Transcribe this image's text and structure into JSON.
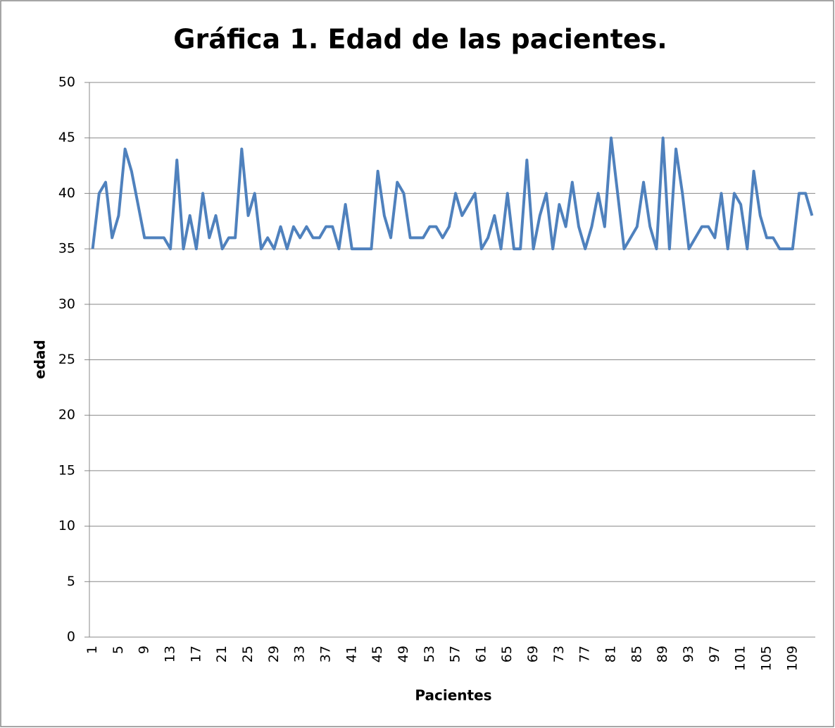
{
  "chart_data": {
    "type": "line",
    "title": "Gráfica 1. Edad de las pacientes.",
    "x_label": "Pacientes",
    "y_label": "edad",
    "categories": [
      1,
      null,
      null,
      null,
      5,
      null,
      null,
      null,
      9,
      null,
      null,
      null,
      13,
      null,
      null,
      null,
      17,
      null,
      null,
      null,
      21,
      null,
      null,
      null,
      25,
      null,
      null,
      null,
      29,
      null,
      null,
      null,
      33,
      null,
      null,
      null,
      37,
      null,
      null,
      null,
      41,
      null,
      null,
      null,
      45,
      null,
      null,
      null,
      49,
      null,
      null,
      null,
      53,
      null,
      null,
      null,
      57,
      null,
      null,
      null,
      61,
      null,
      null,
      null,
      65,
      null,
      null,
      null,
      69,
      null,
      null,
      null,
      73,
      null,
      null,
      null,
      77,
      null,
      null,
      null,
      81,
      null,
      null,
      null,
      85,
      null,
      null,
      null,
      89,
      null,
      null,
      null,
      93,
      null,
      null,
      null,
      97,
      null,
      null,
      null,
      101,
      null,
      null,
      null,
      105,
      null,
      null,
      null,
      109,
      null,
      null,
      null
    ],
    "series": [
      {
        "name": "edad",
        "color": "#4f81bd",
        "values": [
          35,
          40,
          41,
          36,
          38,
          44,
          42,
          39,
          36,
          36,
          36,
          36,
          35,
          43,
          35,
          38,
          35,
          40,
          36,
          38,
          35,
          36,
          36,
          44,
          38,
          40,
          35,
          36,
          35,
          37,
          35,
          37,
          36,
          37,
          36,
          36,
          37,
          37,
          35,
          39,
          35,
          35,
          35,
          35,
          42,
          38,
          36,
          41,
          40,
          36,
          36,
          36,
          37,
          37,
          36,
          37,
          40,
          38,
          39,
          40,
          35,
          36,
          38,
          35,
          40,
          35,
          35,
          43,
          35,
          38,
          40,
          35,
          39,
          37,
          41,
          37,
          35,
          37,
          40,
          37,
          45,
          40,
          35,
          36,
          37,
          41,
          37,
          35,
          45,
          35,
          44,
          40,
          35,
          36,
          37,
          37,
          36,
          40,
          35,
          40,
          39,
          35,
          42,
          38,
          36,
          36,
          35,
          35,
          35,
          40,
          40,
          38
        ]
      }
    ],
    "ylim": [
      0,
      50
    ],
    "yticks": [
      0,
      5,
      10,
      15,
      20,
      25,
      30,
      35,
      40,
      45,
      50
    ],
    "grid": true
  }
}
